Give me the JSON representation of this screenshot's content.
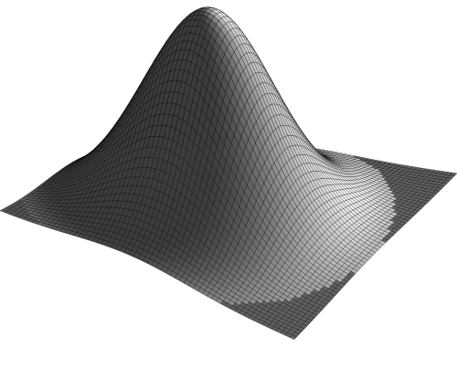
{
  "surface": {
    "description_free": true,
    "function": "gaussian",
    "grid_rows": 64,
    "grid_cols": 64,
    "peak_height": 1.0,
    "sigma": 0.42,
    "shading": "grayscale",
    "mesh_color": "#000000",
    "background_color": "#ffffff"
  }
}
